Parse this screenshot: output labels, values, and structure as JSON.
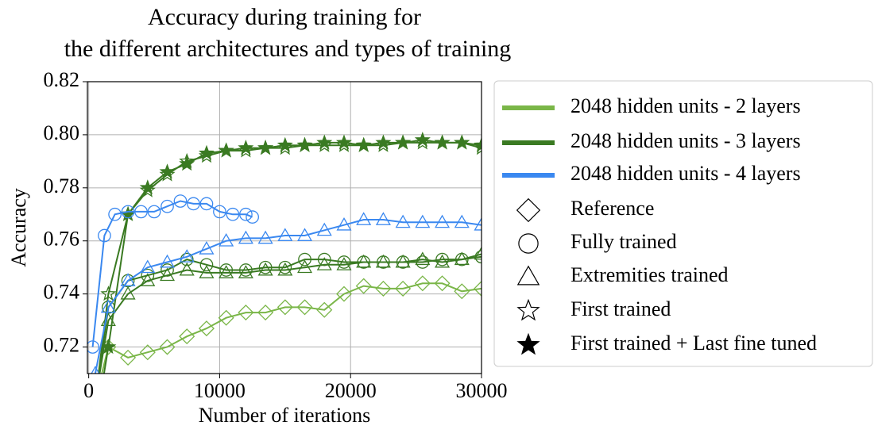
{
  "chart_data": {
    "type": "line",
    "title": [
      "Accuracy during training for",
      "the different architectures and types of training"
    ],
    "x_label": "Number of iterations",
    "y_label": "Accuracy",
    "xlim": [
      -100,
      30000
    ],
    "ylim": [
      0.71,
      0.82
    ],
    "xticks": [
      0,
      10000,
      20000,
      30000
    ],
    "yticks": [
      0.72,
      0.74,
      0.76,
      0.78,
      {
        "value": 0.8,
        "label": "0.80"
      },
      0.82
    ],
    "grid": true,
    "legend": "outside-right",
    "legend_colors": [
      {
        "name": "2048 hidden units - 2 layers",
        "color": "#7ab648"
      },
      {
        "name": "2048 hidden units - 3 layers",
        "color": "#3a7a22"
      },
      {
        "name": "2048 hidden units - 4 layers",
        "color": "#3a88f0"
      }
    ],
    "legend_markers": [
      {
        "name": "Reference",
        "marker": "diamond"
      },
      {
        "name": "Fully trained",
        "marker": "circle"
      },
      {
        "name": "Extremities trained",
        "marker": "triangle"
      },
      {
        "name": "First trained",
        "marker": "star"
      },
      {
        "name": "First trained + Last fine tuned",
        "marker": "star-filled"
      }
    ],
    "series": [
      {
        "color": "#7ab648",
        "marker": "diamond",
        "x": [
          500,
          1500,
          3000,
          4500,
          6000,
          7500,
          9000,
          10500,
          12000,
          13500,
          15000,
          16500,
          18000,
          19500,
          21000,
          22500,
          24000,
          25500,
          27000,
          28500,
          30000
        ],
        "values": [
          0.7,
          0.72,
          0.716,
          0.718,
          0.72,
          0.724,
          0.727,
          0.731,
          0.733,
          0.733,
          0.735,
          0.735,
          0.734,
          0.74,
          0.743,
          0.742,
          0.742,
          0.744,
          0.744,
          0.741,
          0.742
        ]
      },
      {
        "color": "#3a7a22",
        "marker": "circle",
        "x": [
          500,
          1500,
          3000,
          4500,
          6000,
          7500,
          9000,
          10500,
          12000,
          13500,
          15000,
          16500,
          18000,
          19500,
          21000,
          22500,
          24000,
          25500,
          27000,
          28500,
          30000
        ],
        "values": [
          0.7,
          0.735,
          0.745,
          0.747,
          0.749,
          0.753,
          0.751,
          0.749,
          0.749,
          0.75,
          0.75,
          0.753,
          0.753,
          0.752,
          0.752,
          0.752,
          0.752,
          0.752,
          0.753,
          0.753,
          0.754
        ]
      },
      {
        "color": "#3a7a22",
        "marker": "triangle",
        "x": [
          500,
          1500,
          3000,
          4500,
          6000,
          7500,
          9000,
          10500,
          12000,
          13500,
          15000,
          16500,
          18000,
          19500,
          21000,
          22500,
          24000,
          25500,
          27000,
          28500,
          30000
        ],
        "values": [
          0.7,
          0.73,
          0.74,
          0.745,
          0.747,
          0.749,
          0.748,
          0.748,
          0.748,
          0.749,
          0.749,
          0.75,
          0.751,
          0.751,
          0.752,
          0.752,
          0.752,
          0.753,
          0.752,
          0.753,
          0.755
        ]
      },
      {
        "color": "#3a7a22",
        "marker": "star",
        "x": [
          500,
          1500,
          3000,
          4500,
          6000,
          7500,
          9000,
          10500,
          12000,
          13500,
          15000,
          16500,
          18000,
          19500,
          21000,
          22500,
          24000,
          25500,
          27000,
          28500,
          30000
        ],
        "values": [
          0.7,
          0.74,
          0.77,
          0.779,
          0.785,
          0.79,
          0.792,
          0.794,
          0.794,
          0.795,
          0.795,
          0.796,
          0.796,
          0.796,
          0.796,
          0.796,
          0.797,
          0.797,
          0.797,
          0.797,
          0.795
        ]
      },
      {
        "color": "#3a7a22",
        "marker": "star-filled",
        "x": [
          500,
          1500,
          3000,
          4500,
          6000,
          7500,
          9000,
          10500,
          12000,
          13500,
          15000,
          16500,
          18000,
          19500,
          21000,
          22500,
          24000,
          25500,
          27000,
          28500,
          30000
        ],
        "values": [
          0.69,
          0.72,
          0.77,
          0.78,
          0.786,
          0.789,
          0.793,
          0.794,
          0.795,
          0.795,
          0.796,
          0.796,
          0.797,
          0.797,
          0.796,
          0.797,
          0.797,
          0.798,
          0.797,
          0.797,
          0.796
        ]
      },
      {
        "color": "#3a88f0",
        "marker": "circle",
        "x": [
          300,
          1200,
          2000,
          3000,
          4000,
          5000,
          6000,
          7000,
          8000,
          9000,
          10000,
          11000,
          12000,
          12500
        ],
        "values": [
          0.72,
          0.762,
          0.77,
          0.771,
          0.771,
          0.771,
          0.773,
          0.775,
          0.774,
          0.774,
          0.771,
          0.77,
          0.77,
          0.769
        ]
      },
      {
        "color": "#3a88f0",
        "marker": "triangle",
        "x": [
          500,
          1500,
          3000,
          4500,
          6000,
          7500,
          9000,
          10500,
          12000,
          13500,
          15000,
          16500,
          18000,
          19500,
          21000,
          22500,
          24000,
          25500,
          27000,
          28500,
          30000
        ],
        "values": [
          0.71,
          0.735,
          0.745,
          0.75,
          0.752,
          0.754,
          0.757,
          0.76,
          0.761,
          0.761,
          0.762,
          0.762,
          0.764,
          0.766,
          0.768,
          0.768,
          0.767,
          0.767,
          0.767,
          0.767,
          0.766
        ]
      }
    ]
  }
}
